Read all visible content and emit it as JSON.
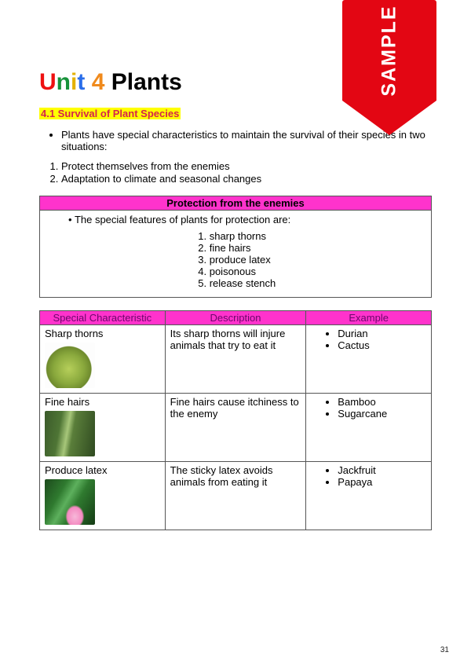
{
  "sample_label": "SAMPLE",
  "title": {
    "u": "U",
    "n": "n",
    "i": "i",
    "t": "t",
    "four": "4",
    "plants": "Plants"
  },
  "subtitle": "4.1 Survival of Plant Species",
  "bullet": "Plants have special characteristics to maintain the survival of their species in two situations:",
  "situations": [
    "Protect themselves from the enemies",
    "Adaptation to climate and seasonal changes"
  ],
  "protection_box": {
    "header": "Protection from the enemies",
    "intro": "The special features of plants for protection are:",
    "features": [
      "sharp thorns",
      "fine hairs",
      "produce latex",
      "poisonous",
      "release stench"
    ]
  },
  "table": {
    "headers": {
      "c1": "Special Characteristic",
      "c2": "Description",
      "c3": "Example"
    },
    "rows": [
      {
        "characteristic": "Sharp thorns",
        "description": "Its sharp thorns will injure animals that try to eat it",
        "examples": [
          "Durian",
          "Cactus"
        ],
        "thumb": "durian"
      },
      {
        "characteristic": "Fine hairs",
        "description": "Fine hairs cause itchiness to the enemy",
        "examples": [
          "Bamboo",
          "Sugarcane"
        ],
        "thumb": "bamboo"
      },
      {
        "characteristic": "Produce latex",
        "description": "The sticky latex avoids animals from eating it",
        "examples": [
          "Jackfruit",
          "Papaya"
        ],
        "thumb": "latex"
      }
    ]
  },
  "page_number": "31",
  "colors": {
    "magenta": "#ff33cc",
    "highlight": "#ffff00",
    "ribbon": "#e30613"
  }
}
